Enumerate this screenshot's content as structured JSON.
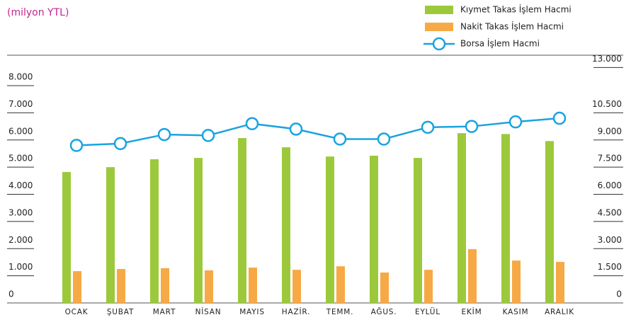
{
  "chart_data": {
    "type": "bar_line",
    "subtitle": "(milyon YTL)",
    "categories": [
      "OCAK",
      "ŞUBAT",
      "MART",
      "NİSAN",
      "MAYIS",
      "HAZİR.",
      "TEMM.",
      "AĞUS.",
      "EYLÜL",
      "EKİM",
      "KASIM",
      "ARALIK"
    ],
    "series": [
      {
        "name": "Kıymet Takas İşlem Hacmi",
        "color": "#9cc93b",
        "type": "bar",
        "values": [
          4820,
          5000,
          5290,
          5340,
          6070,
          5730,
          5390,
          5420,
          5340,
          6250,
          6220,
          5960
        ]
      },
      {
        "name": "Nakit Takas İşlem Hacmi",
        "color": "#f7a945",
        "type": "bar",
        "values": [
          1170,
          1250,
          1280,
          1200,
          1300,
          1220,
          1350,
          1120,
          1220,
          1980,
          1560,
          1510
        ]
      },
      {
        "name": "Borsa İşlem Hacmi",
        "color": "#1aa3e0",
        "type": "line",
        "axis": "y2",
        "values": [
          8700,
          8800,
          9300,
          9250,
          9900,
          9600,
          9050,
          9050,
          9700,
          9750,
          10000,
          10200
        ]
      }
    ],
    "ylim": [
      0,
      8000
    ],
    "yticks": [
      0,
      {
        "value": 1000,
        "label": "1.000"
      },
      {
        "value": 2000,
        "label": "2.000"
      },
      {
        "value": 3000,
        "label": "3.000"
      },
      {
        "value": 4000,
        "label": "4.000"
      },
      {
        "value": 5000,
        "label": "5.000"
      },
      {
        "value": 6000,
        "label": "6.000"
      },
      {
        "value": 7000,
        "label": "7.000"
      },
      {
        "value": 8000,
        "label": "8.000"
      }
    ],
    "y2lim": [
      0,
      12000
    ],
    "y2ticks": [
      0,
      {
        "value": 1500,
        "label": "1.500"
      },
      {
        "value": 3000,
        "label": "3.000"
      },
      {
        "value": 4500,
        "label": "4.500"
      },
      {
        "value": 6000,
        "label": "6.000"
      },
      {
        "value": 7500,
        "label": "7.500"
      },
      {
        "value": 9000,
        "label": "9.000"
      },
      {
        "value": 10500,
        "label": "10.500"
      },
      {
        "value": 13000,
        "label": "13.000"
      }
    ]
  }
}
